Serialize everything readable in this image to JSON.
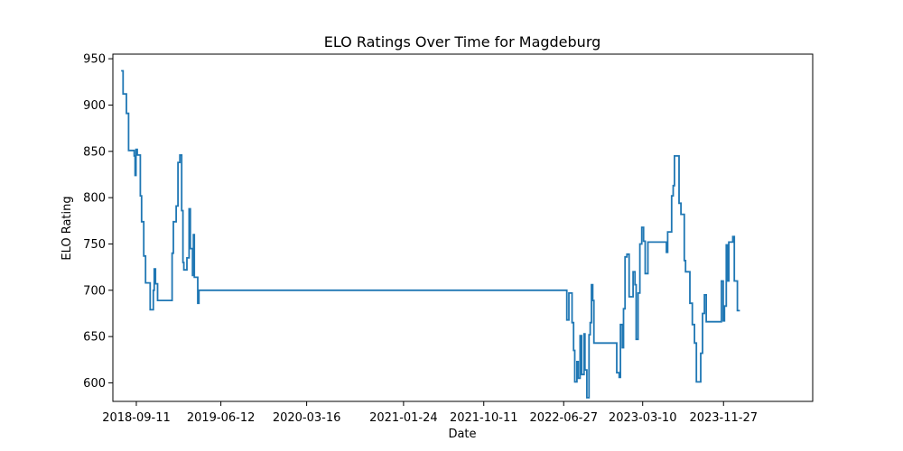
{
  "chart_data": {
    "type": "line",
    "title": "ELO Ratings Over Time for Magdeburg",
    "xlabel": "Date",
    "ylabel": "ELO Rating",
    "x_tick_labels": [
      "2018-09-11",
      "2019-06-12",
      "2020-03-16",
      "2021-01-24",
      "2021-10-11",
      "2022-06-27",
      "2023-03-10",
      "2023-11-27"
    ],
    "x_ticks": [
      "2018-09-11",
      "2019-06-12",
      "2020-03-16",
      "2021-01-24",
      "2021-10-11",
      "2022-06-27",
      "2023-03-10",
      "2023-11-27"
    ],
    "y_ticks": [
      600,
      650,
      700,
      750,
      800,
      850,
      900,
      950
    ],
    "xlim": [
      "2018-06-27",
      "2024-09-11"
    ],
    "ylim": [
      580,
      955
    ],
    "grid": false,
    "line_color": "#1f77b4",
    "series": [
      {
        "points": [
          [
            "2018-07-24",
            937
          ],
          [
            "2018-07-30",
            912
          ],
          [
            "2018-08-10",
            891
          ],
          [
            "2018-08-17",
            851
          ],
          [
            "2018-09-04",
            845
          ],
          [
            "2018-09-07",
            824
          ],
          [
            "2018-09-10",
            852
          ],
          [
            "2018-09-14",
            846
          ],
          [
            "2018-09-24",
            802
          ],
          [
            "2018-09-28",
            774
          ],
          [
            "2018-10-05",
            737
          ],
          [
            "2018-10-11",
            708
          ],
          [
            "2018-10-26",
            679
          ],
          [
            "2018-11-05",
            700
          ],
          [
            "2018-11-08",
            723
          ],
          [
            "2018-11-12",
            707
          ],
          [
            "2018-11-19",
            689
          ],
          [
            "2019-01-05",
            740
          ],
          [
            "2019-01-09",
            774
          ],
          [
            "2019-01-18",
            791
          ],
          [
            "2019-01-24",
            838
          ],
          [
            "2019-01-30",
            846
          ],
          [
            "2019-02-05",
            786
          ],
          [
            "2019-02-09",
            730
          ],
          [
            "2019-02-12",
            722
          ],
          [
            "2019-02-22",
            735
          ],
          [
            "2019-03-01",
            788
          ],
          [
            "2019-03-05",
            745
          ],
          [
            "2019-03-12",
            716
          ],
          [
            "2019-03-15",
            760
          ],
          [
            "2019-03-18",
            714
          ],
          [
            "2019-03-29",
            686
          ],
          [
            "2019-04-02",
            700
          ],
          [
            "2022-07-07",
            668
          ],
          [
            "2022-07-14",
            697
          ],
          [
            "2022-07-24",
            665
          ],
          [
            "2022-07-29",
            635
          ],
          [
            "2022-08-02",
            601
          ],
          [
            "2022-08-09",
            623
          ],
          [
            "2022-08-13",
            605
          ],
          [
            "2022-08-19",
            651
          ],
          [
            "2022-08-24",
            609
          ],
          [
            "2022-09-01",
            653
          ],
          [
            "2022-09-04",
            614
          ],
          [
            "2022-09-10",
            584
          ],
          [
            "2022-09-17",
            652
          ],
          [
            "2022-09-21",
            665
          ],
          [
            "2022-09-25",
            706
          ],
          [
            "2022-09-29",
            689
          ],
          [
            "2022-10-03",
            643
          ],
          [
            "2022-12-16",
            611
          ],
          [
            "2022-12-24",
            606
          ],
          [
            "2022-12-28",
            663
          ],
          [
            "2023-01-03",
            638
          ],
          [
            "2023-01-07",
            680
          ],
          [
            "2023-01-12",
            736
          ],
          [
            "2023-01-18",
            739
          ],
          [
            "2023-01-25",
            693
          ],
          [
            "2023-02-07",
            720
          ],
          [
            "2023-02-13",
            706
          ],
          [
            "2023-02-17",
            647
          ],
          [
            "2023-02-23",
            697
          ],
          [
            "2023-03-01",
            750
          ],
          [
            "2023-03-07",
            768
          ],
          [
            "2023-03-13",
            753
          ],
          [
            "2023-03-18",
            718
          ],
          [
            "2023-03-27",
            752
          ],
          [
            "2023-05-26",
            741
          ],
          [
            "2023-05-30",
            763
          ],
          [
            "2023-06-12",
            802
          ],
          [
            "2023-06-17",
            813
          ],
          [
            "2023-06-21",
            845
          ],
          [
            "2023-07-06",
            794
          ],
          [
            "2023-07-12",
            782
          ],
          [
            "2023-07-23",
            732
          ],
          [
            "2023-07-27",
            720
          ],
          [
            "2023-08-10",
            686
          ],
          [
            "2023-08-18",
            663
          ],
          [
            "2023-08-25",
            643
          ],
          [
            "2023-08-31",
            601
          ],
          [
            "2023-09-14",
            632
          ],
          [
            "2023-09-20",
            675
          ],
          [
            "2023-09-26",
            695
          ],
          [
            "2023-10-02",
            666
          ],
          [
            "2023-11-20",
            710
          ],
          [
            "2023-11-26",
            667
          ],
          [
            "2023-11-30",
            683
          ],
          [
            "2023-12-06",
            749
          ],
          [
            "2023-12-10",
            710
          ],
          [
            "2023-12-14",
            752
          ],
          [
            "2023-12-27",
            758
          ],
          [
            "2024-01-01",
            710
          ],
          [
            "2024-01-11",
            678
          ],
          [
            "2024-01-19",
            678
          ]
        ]
      }
    ]
  }
}
